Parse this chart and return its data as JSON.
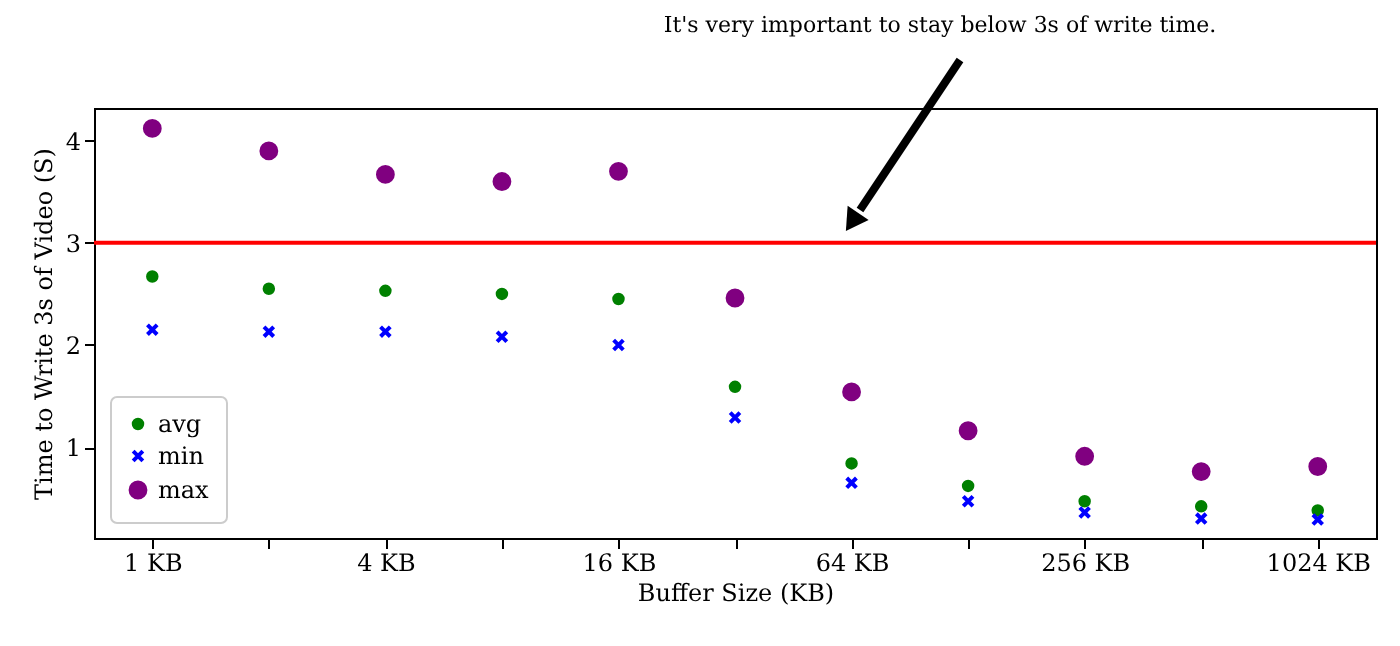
{
  "chart_data": {
    "type": "scatter",
    "xlabel": "Buffer Size (KB)",
    "ylabel": "Time to Write 3s of Video (S)",
    "x": [
      1,
      2,
      4,
      8,
      16,
      32,
      64,
      128,
      256,
      512,
      1024
    ],
    "series": [
      {
        "name": "avg",
        "color": "#008000",
        "marker": "circle",
        "values": [
          2.67,
          2.55,
          2.53,
          2.5,
          2.45,
          1.59,
          0.84,
          0.62,
          0.47,
          0.42,
          0.38
        ]
      },
      {
        "name": "min",
        "color": "#0000ff",
        "marker": "cross",
        "values": [
          2.15,
          2.13,
          2.13,
          2.08,
          2.0,
          1.29,
          0.65,
          0.47,
          0.36,
          0.3,
          0.29
        ]
      },
      {
        "name": "max",
        "color": "#800080",
        "marker": "circle",
        "values": [
          4.12,
          3.9,
          3.67,
          3.6,
          3.7,
          2.46,
          1.54,
          1.16,
          0.91,
          0.76,
          0.81
        ]
      }
    ],
    "log": "x",
    "xlim": [
      0.707,
      1448
    ],
    "ylim": [
      0.11,
      4.32
    ],
    "xticks": [
      {
        "value": 1,
        "label": "1 KB"
      },
      {
        "value": 2,
        "label": null
      },
      {
        "value": 4,
        "label": "4 KB"
      },
      {
        "value": 8,
        "label": null
      },
      {
        "value": 16,
        "label": "16 KB"
      },
      {
        "value": 32,
        "label": null
      },
      {
        "value": 64,
        "label": "64 KB"
      },
      {
        "value": 128,
        "label": null
      },
      {
        "value": 256,
        "label": "256 KB"
      },
      {
        "value": 512,
        "label": null
      },
      {
        "value": 1024,
        "label": "1024 KB"
      }
    ],
    "yticks": [
      1,
      2,
      3,
      4
    ],
    "ref_lines": [
      {
        "axis": "y",
        "value": 3,
        "color": "#ff0000"
      }
    ],
    "annotations": [
      "It's very important to stay below 3s of write time."
    ],
    "legend": "bottom left",
    "grid": false
  }
}
